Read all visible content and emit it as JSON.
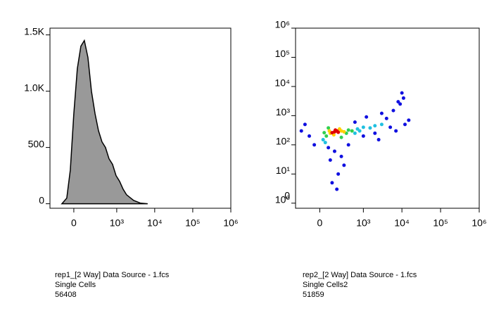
{
  "chart_data": [
    {
      "type": "area",
      "xscale": "biexponential",
      "yscale": "linear",
      "color": "#999999",
      "x": [
        -118,
        -66,
        -32,
        0,
        32,
        66,
        102,
        144,
        192,
        250,
        316,
        398,
        498,
        621,
        773,
        959,
        1188,
        1472,
        1815,
        2790,
        4260,
        6540
      ],
      "values": [
        0,
        50,
        300,
        800,
        1200,
        1400,
        1450,
        1300,
        1000,
        800,
        650,
        550,
        500,
        400,
        350,
        250,
        200,
        130,
        80,
        30,
        5,
        0
      ],
      "xlim": [
        -300,
        1000000
      ],
      "xticks": [
        0,
        {
          "value": 1000,
          "label": "10³"
        },
        {
          "value": 10000,
          "label": "10⁴"
        },
        {
          "value": 100000,
          "label": "10⁵"
        },
        {
          "value": 1000000,
          "label": "10⁶"
        }
      ],
      "ylim": [
        -40,
        1560
      ],
      "yticks": [
        0,
        500,
        {
          "value": 1000,
          "label": "1.0K"
        },
        {
          "value": 1500,
          "label": "1.5K"
        }
      ],
      "caption": [
        "rep1_[2 Way] Data Source - 1.fcs",
        "Single Cells",
        "56408"
      ]
    },
    {
      "type": "scatter",
      "xscale": "biexponential",
      "yscale": "log",
      "series": [
        {
          "color": "#1010e0",
          "x": [
            -100,
            -200,
            4000,
            6000,
            8000,
            10000,
            5000,
            7000,
            12000,
            15000,
            3000,
            150,
            100,
            200,
            120,
            180,
            250,
            80,
            400,
            1000,
            2000,
            9000,
            11000,
            2500,
            300,
            -50,
            -150,
            600,
            1200
          ],
          "values": [
            200,
            300,
            800,
            1500,
            3000,
            6000,
            400,
            300,
            500,
            700,
            1200,
            60,
            30,
            10,
            5,
            3,
            40,
            80,
            100,
            200,
            250,
            2500,
            4000,
            150,
            20,
            100,
            500,
            600,
            900
          ]
        },
        {
          "color": "#20c0e0",
          "x": [
            700,
            1000,
            30,
            600,
            1500,
            2000,
            3000,
            50,
            800
          ],
          "values": [
            350,
            400,
            150,
            250,
            380,
            450,
            500,
            120,
            300
          ]
        },
        {
          "color": "#30d050",
          "x": [
            60,
            350,
            400,
            80,
            250,
            500,
            40
          ],
          "values": [
            200,
            250,
            320,
            380,
            180,
            300,
            260
          ]
        },
        {
          "color": "#ffd000",
          "x": [
            100,
            250,
            140,
            220,
            300,
            90
          ],
          "values": [
            250,
            300,
            220,
            350,
            280,
            300
          ]
        },
        {
          "color": "#e00000",
          "x": [
            150,
            180,
            120,
            200,
            160
          ],
          "values": [
            280,
            300,
            260,
            270,
            320
          ]
        }
      ],
      "xlim": [
        -300,
        1000000
      ],
      "xticks": [
        0,
        {
          "value": 1000,
          "label": "10³"
        },
        {
          "value": 10000,
          "label": "10⁴"
        },
        {
          "value": 100000,
          "label": "10⁵"
        },
        {
          "value": 1000000,
          "label": "10⁶"
        }
      ],
      "ylim": [
        0.67,
        1000000
      ],
      "yticks": [
        {
          "value": 1,
          "label": "10⁰"
        },
        {
          "value": 10,
          "label": "10¹"
        },
        {
          "value": 100,
          "label": "10²"
        },
        {
          "value": 1000,
          "label": "10³"
        },
        {
          "value": 10000,
          "label": "10⁴"
        },
        {
          "value": 100000,
          "label": "10⁵"
        },
        {
          "value": 1000000,
          "label": "10⁶"
        }
      ],
      "annotations": [
        "0"
      ],
      "caption": [
        "rep2_[2 Way] Data Source - 1.fcs",
        "Single Cells2",
        "51859"
      ]
    }
  ]
}
